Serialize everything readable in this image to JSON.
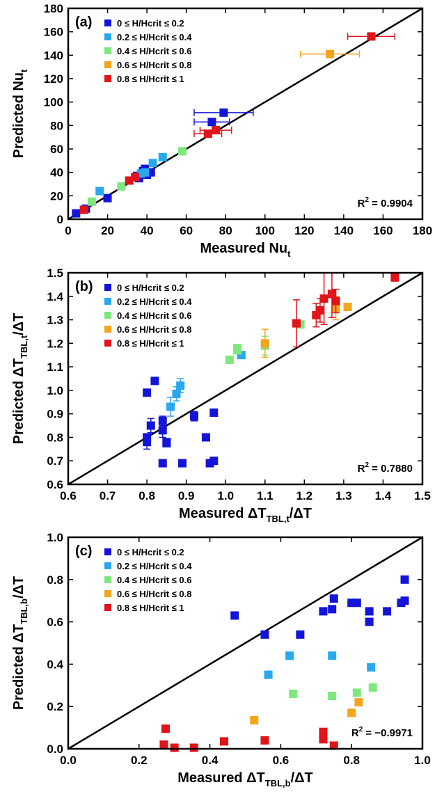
{
  "chart_data": [
    {
      "type": "scatter",
      "panel_label": "(a)",
      "xlabel": "Measured Nu",
      "xlabel_sub": "t",
      "ylabel": "Predicted Nu",
      "ylabel_sub": "t",
      "xlim": [
        0,
        180
      ],
      "ylim": [
        0,
        180
      ],
      "xticks": [
        0,
        20,
        40,
        60,
        80,
        100,
        120,
        140,
        160,
        180
      ],
      "yticks": [
        0,
        20,
        40,
        60,
        80,
        100,
        120,
        140,
        160,
        180
      ],
      "tick_decimals": 0,
      "identity_line": true,
      "annotation": "R",
      "annotation_sup": "2",
      "annotation_value": " = 0.9904",
      "legend_position": "top-left",
      "series": [
        {
          "name": "0 ≤ H/Hcrit ≤ 0.2",
          "color": "#1414d8",
          "points": [
            {
              "x": 4,
              "y": 5
            },
            {
              "x": 9,
              "y": 9
            },
            {
              "x": 20,
              "y": 18
            },
            {
              "x": 35,
              "y": 37
            },
            {
              "x": 38,
              "y": 41
            },
            {
              "x": 40,
              "y": 38
            },
            {
              "x": 42,
              "y": 40
            },
            {
              "x": 36,
              "y": 35
            },
            {
              "x": 39,
              "y": 43
            },
            {
              "x": 73,
              "y": 83,
              "xerr": 9
            },
            {
              "x": 79,
              "y": 91,
              "xerr": 15
            }
          ]
        },
        {
          "name": "0.2 ≤ H/Hcrit ≤ 0.4",
          "color": "#2aa8ee",
          "points": [
            {
              "x": 16,
              "y": 24
            },
            {
              "x": 43,
              "y": 48
            },
            {
              "x": 48,
              "y": 53
            },
            {
              "x": 39,
              "y": 40
            },
            {
              "x": 37,
              "y": 39
            }
          ]
        },
        {
          "name": "0.4 ≤ H/Hcrit ≤ 0.6",
          "color": "#7ee87e",
          "points": [
            {
              "x": 12,
              "y": 15
            },
            {
              "x": 27,
              "y": 28
            },
            {
              "x": 58,
              "y": 58
            }
          ]
        },
        {
          "name": "0.6 ≤ H/Hcrit ≤ 0.8",
          "color": "#f5a51c",
          "points": [
            {
              "x": 133,
              "y": 141,
              "xerr": 15
            }
          ]
        },
        {
          "name": "0.8 ≤ H/Hcrit ≤ 1",
          "color": "#e0141a",
          "points": [
            {
              "x": 8,
              "y": 8
            },
            {
              "x": 31,
              "y": 33
            },
            {
              "x": 34,
              "y": 36
            },
            {
              "x": 71,
              "y": 73,
              "xerr": 7
            },
            {
              "x": 75,
              "y": 76,
              "xerr": 8
            },
            {
              "x": 154,
              "y": 156,
              "xerr": 12
            }
          ]
        }
      ]
    },
    {
      "type": "scatter",
      "panel_label": "(b)",
      "xlabel": "Measured ΔT",
      "xlabel_sub": "TBL,t",
      "xlabel_tail": "/ΔT",
      "ylabel": "Predicted ΔT",
      "ylabel_sub": "TBL,t",
      "ylabel_tail": "/ΔT",
      "xlim": [
        0.6,
        1.5
      ],
      "ylim": [
        0.6,
        1.5
      ],
      "xticks": [
        0.6,
        0.7,
        0.8,
        0.9,
        1.0,
        1.1,
        1.2,
        1.3,
        1.4,
        1.5
      ],
      "yticks": [
        0.6,
        0.7,
        0.8,
        0.9,
        1.0,
        1.1,
        1.2,
        1.3,
        1.4,
        1.5
      ],
      "tick_decimals": 1,
      "identity_line": true,
      "annotation": "R",
      "annotation_sup": "2",
      "annotation_value": " = 0.7880",
      "legend_position": "top-left",
      "series": [
        {
          "name": "0 ≤ H/Hcrit ≤ 0.2",
          "color": "#1414d8",
          "points": [
            {
              "x": 0.8,
              "y": 0.99
            },
            {
              "x": 0.82,
              "y": 1.04
            },
            {
              "x": 0.81,
              "y": 0.85,
              "yerr": 0.03
            },
            {
              "x": 0.84,
              "y": 0.87,
              "yerr": 0.02
            },
            {
              "x": 0.84,
              "y": 0.83,
              "yerr": 0.03
            },
            {
              "x": 0.8,
              "y": 0.78,
              "yerr": 0.03
            },
            {
              "x": 0.8,
              "y": 0.8
            },
            {
              "x": 0.85,
              "y": 0.78
            },
            {
              "x": 0.85,
              "y": 0.775
            },
            {
              "x": 0.84,
              "y": 0.69
            },
            {
              "x": 0.89,
              "y": 0.69
            },
            {
              "x": 0.92,
              "y": 0.89,
              "yerr": 0.02
            },
            {
              "x": 0.97,
              "y": 0.905
            },
            {
              "x": 0.95,
              "y": 0.8
            },
            {
              "x": 0.96,
              "y": 0.69
            },
            {
              "x": 0.97,
              "y": 0.7
            }
          ]
        },
        {
          "name": "0.2 ≤ H/Hcrit ≤ 0.4",
          "color": "#2aa8ee",
          "points": [
            {
              "x": 0.86,
              "y": 0.93,
              "yerr": 0.04
            },
            {
              "x": 0.875,
              "y": 0.985,
              "yerr": 0.03
            },
            {
              "x": 0.885,
              "y": 1.02,
              "yerr": 0.03
            },
            {
              "x": 1.04,
              "y": 1.15
            }
          ]
        },
        {
          "name": "0.4 ≤ H/Hcrit ≤ 0.6",
          "color": "#7ee87e",
          "points": [
            {
              "x": 1.01,
              "y": 1.13
            },
            {
              "x": 1.03,
              "y": 1.17
            },
            {
              "x": 1.03,
              "y": 1.18
            },
            {
              "x": 1.1,
              "y": 1.19,
              "yerr": 0.04
            },
            {
              "x": 1.19,
              "y": 1.28
            }
          ]
        },
        {
          "name": "0.6 ≤ H/Hcrit ≤ 0.8",
          "color": "#f5a51c",
          "points": [
            {
              "x": 1.1,
              "y": 1.2,
              "yerr": 0.06
            },
            {
              "x": 1.28,
              "y": 1.35,
              "yerr": 0.05
            },
            {
              "x": 1.31,
              "y": 1.355
            }
          ]
        },
        {
          "name": "0.8 ≤ H/Hcrit ≤ 1",
          "color": "#e0141a",
          "points": [
            {
              "x": 1.18,
              "y": 1.285,
              "yerr": 0.1
            },
            {
              "x": 1.23,
              "y": 1.32,
              "yerr": 0.05
            },
            {
              "x": 1.24,
              "y": 1.34,
              "yerr": 0.05
            },
            {
              "x": 1.25,
              "y": 1.39,
              "yerr": 0.11
            },
            {
              "x": 1.27,
              "y": 1.41,
              "yerr": 0.1
            },
            {
              "x": 1.28,
              "y": 1.38,
              "yerr": 0.05
            },
            {
              "x": 1.43,
              "y": 1.48
            }
          ]
        }
      ]
    },
    {
      "type": "scatter",
      "panel_label": "(c)",
      "xlabel": "Measured ΔT",
      "xlabel_sub": "TBL,b",
      "xlabel_tail": "/ΔT",
      "ylabel": "Predicted ΔT",
      "ylabel_sub": "TBL,b",
      "ylabel_tail": "/ΔT",
      "xlim": [
        0.0,
        1.0
      ],
      "ylim": [
        0.0,
        1.0
      ],
      "xticks": [
        0.0,
        0.2,
        0.4,
        0.6,
        0.8,
        1.0
      ],
      "yticks": [
        0.0,
        0.2,
        0.4,
        0.6,
        0.8,
        1.0
      ],
      "tick_decimals": 1,
      "identity_line": true,
      "annotation": "R",
      "annotation_sup": "2",
      "annotation_value": " = −0.9971",
      "legend_position": "top-left",
      "series": [
        {
          "name": "0 ≤ H/Hcrit ≤ 0.2",
          "color": "#1414d8",
          "points": [
            {
              "x": 0.47,
              "y": 0.63
            },
            {
              "x": 0.555,
              "y": 0.54
            },
            {
              "x": 0.655,
              "y": 0.54
            },
            {
              "x": 0.72,
              "y": 0.65
            },
            {
              "x": 0.745,
              "y": 0.66
            },
            {
              "x": 0.75,
              "y": 0.71
            },
            {
              "x": 0.8,
              "y": 0.69
            },
            {
              "x": 0.815,
              "y": 0.69
            },
            {
              "x": 0.85,
              "y": 0.6
            },
            {
              "x": 0.85,
              "y": 0.65
            },
            {
              "x": 0.9,
              "y": 0.65
            },
            {
              "x": 0.94,
              "y": 0.69
            },
            {
              "x": 0.95,
              "y": 0.7
            },
            {
              "x": 0.95,
              "y": 0.8
            }
          ]
        },
        {
          "name": "0.2 ≤ H/Hcrit ≤ 0.4",
          "color": "#2aa8ee",
          "points": [
            {
              "x": 0.565,
              "y": 0.35
            },
            {
              "x": 0.625,
              "y": 0.44
            },
            {
              "x": 0.745,
              "y": 0.44
            },
            {
              "x": 0.855,
              "y": 0.385
            }
          ]
        },
        {
          "name": "0.4 ≤ H/Hcrit ≤ 0.6",
          "color": "#7ee87e",
          "points": [
            {
              "x": 0.635,
              "y": 0.26
            },
            {
              "x": 0.745,
              "y": 0.25
            },
            {
              "x": 0.815,
              "y": 0.265
            },
            {
              "x": 0.86,
              "y": 0.29
            }
          ]
        },
        {
          "name": "0.6 ≤ H/Hcrit ≤ 0.8",
          "color": "#f5a51c",
          "points": [
            {
              "x": 0.525,
              "y": 0.135
            },
            {
              "x": 0.8,
              "y": 0.17
            },
            {
              "x": 0.82,
              "y": 0.22
            }
          ]
        },
        {
          "name": "0.8 ≤ H/Hcrit ≤ 1",
          "color": "#e0141a",
          "points": [
            {
              "x": 0.27,
              "y": 0.02
            },
            {
              "x": 0.275,
              "y": 0.095
            },
            {
              "x": 0.3,
              "y": 0.005
            },
            {
              "x": 0.355,
              "y": 0.005
            },
            {
              "x": 0.44,
              "y": 0.035
            },
            {
              "x": 0.555,
              "y": 0.04
            },
            {
              "x": 0.72,
              "y": 0.08
            },
            {
              "x": 0.72,
              "y": 0.045
            },
            {
              "x": 0.75,
              "y": 0.015
            }
          ]
        }
      ]
    }
  ]
}
